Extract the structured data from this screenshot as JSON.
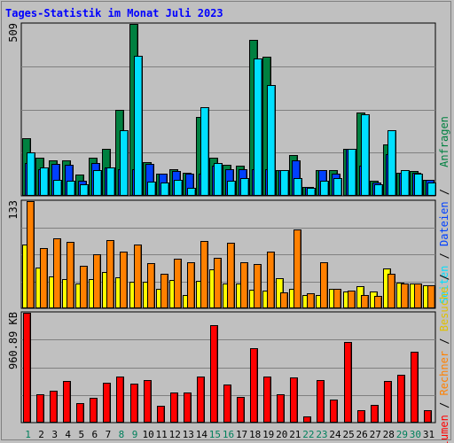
{
  "title": "Tages-Statistik im Monat Juli 2023",
  "days": [
    "1",
    "2",
    "3",
    "4",
    "5",
    "6",
    "7",
    "8",
    "9",
    "10",
    "11",
    "12",
    "13",
    "14",
    "15",
    "16",
    "17",
    "18",
    "19",
    "20",
    "21",
    "22",
    "23",
    "24",
    "25",
    "26",
    "27",
    "28",
    "29",
    "30",
    "31"
  ],
  "weekend_days": [
    1,
    8,
    9,
    15,
    16,
    22,
    23,
    29,
    30
  ],
  "y_labels": {
    "top": "509",
    "middle": "133",
    "bottom": "960.89 KB"
  },
  "right_legend": {
    "anfragen": "Anfragen",
    "dateien": "Dateien",
    "seiten": "Seiten",
    "besuche": "Besuche",
    "rechner": "Rechner",
    "volumen": "Volumen",
    "sep": " / "
  },
  "colors": {
    "title": "#0000ff",
    "anfragen": "#008040",
    "dateien": "#0040ff",
    "seiten": "#00e0ff",
    "besuche": "#ffff00",
    "rechner": "#ff8000",
    "volumen": "#ff0000",
    "weekend_label": "#00805c",
    "weekday_label": "#000000"
  },
  "chart_data": [
    {
      "type": "bar",
      "name": "top",
      "categories": [
        "1",
        "2",
        "3",
        "4",
        "5",
        "6",
        "7",
        "8",
        "9",
        "10",
        "11",
        "12",
        "13",
        "14",
        "15",
        "16",
        "17",
        "18",
        "19",
        "20",
        "21",
        "22",
        "23",
        "24",
        "25",
        "26",
        "27",
        "28",
        "29",
        "30",
        "31"
      ],
      "ylim": [
        0,
        509
      ],
      "series": [
        {
          "name": "Anfragen",
          "values": [
            169,
            110,
            104,
            104,
            60,
            110,
            136,
            252,
            509,
            98,
            63,
            76,
            66,
            231,
            110,
            90,
            86,
            461,
            412,
            73,
            118,
            24,
            73,
            73,
            136,
            246,
            41,
            150,
            66,
            71,
            46
          ]
        },
        {
          "name": "Dateien",
          "values": [
            96,
            76,
            93,
            90,
            42,
            96,
            83,
            76,
            76,
            91,
            63,
            71,
            63,
            63,
            86,
            76,
            76,
            76,
            76,
            73,
            103,
            24,
            73,
            63,
            136,
            86,
            36,
            120,
            66,
            66,
            46
          ]
        },
        {
          "name": "Seiten",
          "values": [
            126,
            83,
            46,
            43,
            31,
            73,
            83,
            192,
            414,
            40,
            36,
            46,
            20,
            261,
            96,
            43,
            50,
            406,
            327,
            73,
            50,
            20,
            43,
            50,
            136,
            239,
            31,
            192,
            73,
            63,
            36
          ]
        }
      ]
    },
    {
      "type": "bar",
      "name": "middle",
      "categories": [
        "1",
        "2",
        "3",
        "4",
        "5",
        "6",
        "7",
        "8",
        "9",
        "10",
        "11",
        "12",
        "13",
        "14",
        "15",
        "16",
        "17",
        "18",
        "19",
        "20",
        "21",
        "22",
        "23",
        "24",
        "25",
        "26",
        "27",
        "28",
        "29",
        "30",
        "31"
      ],
      "ylim": [
        0,
        133
      ],
      "series": [
        {
          "name": "Besuche",
          "values": [
            79,
            50,
            39,
            35,
            30,
            35,
            44,
            38,
            32,
            32,
            23,
            34,
            16,
            33,
            48,
            30,
            30,
            22,
            21,
            37,
            23,
            16,
            15,
            23,
            20,
            27,
            20,
            49,
            31,
            30,
            28
          ]
        },
        {
          "name": "Rechner",
          "values": [
            133,
            74,
            86,
            82,
            52,
            66,
            84,
            70,
            79,
            55,
            42,
            61,
            56,
            83,
            62,
            81,
            57,
            54,
            70,
            19,
            98,
            18,
            57,
            23,
            21,
            16,
            14,
            42,
            30,
            30,
            28
          ]
        }
      ]
    },
    {
      "type": "bar",
      "name": "bottom",
      "categories": [
        "1",
        "2",
        "3",
        "4",
        "5",
        "6",
        "7",
        "8",
        "9",
        "10",
        "11",
        "12",
        "13",
        "14",
        "15",
        "16",
        "17",
        "18",
        "19",
        "20",
        "21",
        "22",
        "23",
        "24",
        "25",
        "26",
        "27",
        "28",
        "29",
        "30",
        "31"
      ],
      "ylim": [
        0,
        960.89
      ],
      "series": [
        {
          "name": "Volumen",
          "values": [
            960,
            245,
            270,
            360,
            165,
            210,
            345,
            400,
            335,
            365,
            140,
            260,
            255,
            395,
            855,
            325,
            220,
            650,
            395,
            245,
            390,
            45,
            365,
            195,
            705,
            100,
            150,
            360,
            415,
            620,
            105
          ]
        }
      ]
    }
  ]
}
